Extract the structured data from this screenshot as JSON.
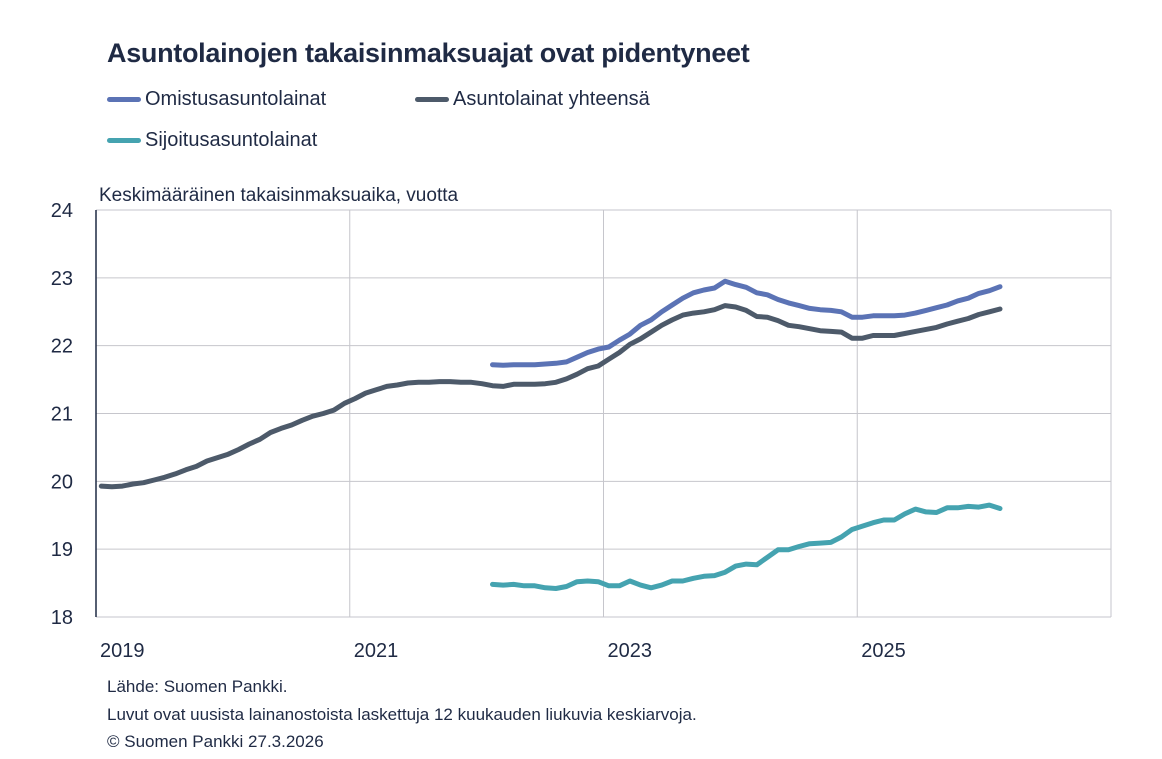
{
  "chart_data": {
    "type": "line",
    "title": "Asuntolainojen takaisinmaksuajat ovat pidentyneet",
    "ylabel": "Keskimääräinen takaisinmaksuaika, vuotta",
    "xlabel": "",
    "ylim": [
      18,
      24
    ],
    "yticks": [
      "18",
      "19",
      "20",
      "21",
      "22",
      "23",
      "24"
    ],
    "xlim": [
      "2019-01",
      "2026-12"
    ],
    "xticks": [
      "2019",
      "2021",
      "2023",
      "2025"
    ],
    "x_frequency": "monthly",
    "grid": true,
    "legend_position": "top-left",
    "series": [
      {
        "name": "Omistusasuntolainat",
        "color": "#5b73b5",
        "start": "2022-02",
        "values": [
          21.72,
          21.71,
          21.72,
          21.72,
          21.72,
          21.73,
          21.74,
          21.76,
          21.83,
          21.9,
          21.95,
          21.98,
          22.08,
          22.17,
          22.3,
          22.38,
          22.5,
          22.6,
          22.7,
          22.78,
          22.82,
          22.85,
          22.95,
          22.9,
          22.86,
          22.78,
          22.75,
          22.68,
          22.63,
          22.59,
          22.55,
          22.53,
          22.52,
          22.5,
          22.42,
          22.42,
          22.44,
          22.44,
          22.44,
          22.45,
          22.48,
          22.52,
          22.56,
          22.6,
          22.66,
          22.7,
          22.77,
          22.81,
          22.87
        ]
      },
      {
        "name": "Asuntolainat yhteensä",
        "color": "#4d5a6a",
        "start": "2019-01",
        "values": [
          19.93,
          19.92,
          19.93,
          19.96,
          19.98,
          20.02,
          20.06,
          20.11,
          20.17,
          20.22,
          20.3,
          20.35,
          20.4,
          20.47,
          20.55,
          20.62,
          20.72,
          20.78,
          20.83,
          20.9,
          20.96,
          21.0,
          21.05,
          21.15,
          21.22,
          21.3,
          21.35,
          21.4,
          21.42,
          21.45,
          21.46,
          21.46,
          21.47,
          21.47,
          21.46,
          21.46,
          21.44,
          21.41,
          21.4,
          21.43,
          21.43,
          21.43,
          21.44,
          21.46,
          21.51,
          21.58,
          21.66,
          21.7,
          21.8,
          21.9,
          22.02,
          22.1,
          22.2,
          22.3,
          22.38,
          22.45,
          22.48,
          22.5,
          22.53,
          22.59,
          22.57,
          22.52,
          22.43,
          22.42,
          22.37,
          22.3,
          22.28,
          22.25,
          22.22,
          22.21,
          22.2,
          22.11,
          22.11,
          22.15,
          22.15,
          22.15,
          22.18,
          22.21,
          22.24,
          22.27,
          22.32,
          22.36,
          22.4,
          22.46,
          22.5,
          22.54
        ]
      },
      {
        "name": "Sijoitusasuntolainat",
        "color": "#45a3b0",
        "start": "2022-02",
        "values": [
          18.48,
          18.47,
          18.48,
          18.46,
          18.46,
          18.43,
          18.42,
          18.45,
          18.52,
          18.53,
          18.52,
          18.46,
          18.46,
          18.53,
          18.47,
          18.43,
          18.47,
          18.53,
          18.53,
          18.57,
          18.6,
          18.61,
          18.66,
          18.75,
          18.78,
          18.77,
          18.88,
          18.99,
          18.99,
          19.04,
          19.08,
          19.09,
          19.1,
          19.18,
          19.29,
          19.34,
          19.39,
          19.43,
          19.43,
          19.52,
          19.59,
          19.55,
          19.54,
          19.61,
          19.61,
          19.63,
          19.62,
          19.65,
          19.6
        ]
      }
    ]
  },
  "footer": {
    "source": "Lähde: Suomen Pankki.",
    "note": "Luvut ovat uusista lainanostoista laskettuja 12 kuukauden liukuvia keskiarvoja.",
    "copyright": "© Suomen Pankki 27.3.2026"
  }
}
